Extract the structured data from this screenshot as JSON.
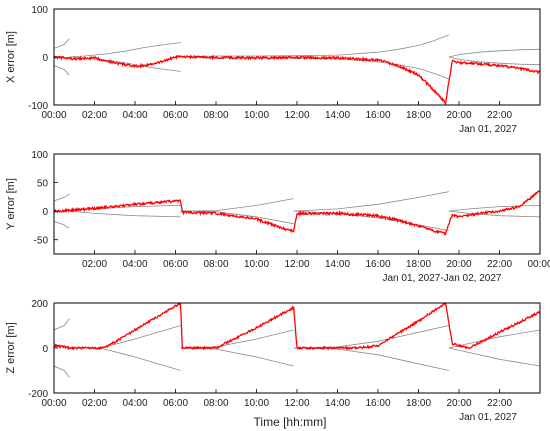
{
  "colors": {
    "error": "#ff0000",
    "bound": "#8a8a8a",
    "frame": "#000000",
    "text": "#222222"
  },
  "figure": {
    "xlabel": "Time [hh:mm]"
  },
  "chart_data": [
    {
      "type": "line",
      "ylabel": "X error [m]",
      "ylim": [
        -100,
        100
      ],
      "yticks": [
        "100",
        "0",
        "-100"
      ],
      "xlim": [
        "00:00",
        "24:00"
      ],
      "xticks": [
        "00:00",
        "02:00",
        "04:00",
        "06:00",
        "08:00",
        "10:00",
        "12:00",
        "14:00",
        "16:00",
        "18:00",
        "20:00",
        "22:00"
      ],
      "date_label": "Jan 01, 2027",
      "grid": false,
      "series": [
        {
          "role": "error",
          "x": [
            "00:00",
            "00:30",
            "01:00",
            "02:00",
            "03:00",
            "04:00",
            "05:00",
            "06:00",
            "07:00",
            "08:00",
            "10:00",
            "12:00",
            "14:00",
            "16:00",
            "17:00",
            "18:00",
            "18:30",
            "19:00",
            "19:20",
            "19:40",
            "20:00",
            "21:00",
            "22:00",
            "23:00",
            "24:00"
          ],
          "y": [
            0,
            -2,
            -4,
            -2,
            -12,
            -20,
            -14,
            0,
            0,
            -1,
            -2,
            -1,
            -2,
            -6,
            -18,
            -38,
            -58,
            -80,
            -96,
            -8,
            -12,
            -14,
            -18,
            -24,
            -32
          ]
        },
        {
          "role": "bound-upper",
          "segments": [
            {
              "x": [
                "00:00",
                "00:30",
                "00:45"
              ],
              "y": [
                18,
                26,
                38
              ]
            },
            {
              "x": [
                "00:45",
                "01:30",
                "02:30",
                "03:30",
                "04:30",
                "05:30",
                "06:15"
              ],
              "y": [
                0,
                2,
                6,
                12,
                20,
                26,
                30
              ]
            },
            {
              "x": [
                "06:15",
                "08:00",
                "10:00",
                "12:00",
                "14:00",
                "16:00",
                "17:00",
                "18:00",
                "18:45",
                "19:30"
              ],
              "y": [
                0,
                2,
                2,
                3,
                4,
                10,
                16,
                24,
                34,
                46
              ]
            },
            {
              "x": [
                "19:30",
                "20:00",
                "21:00",
                "22:00",
                "23:00",
                "24:00"
              ],
              "y": [
                0,
                5,
                10,
                13,
                15,
                16
              ]
            }
          ]
        },
        {
          "role": "bound-lower",
          "segments": [
            {
              "x": [
                "00:00",
                "00:30",
                "00:45"
              ],
              "y": [
                -18,
                -26,
                -38
              ]
            },
            {
              "x": [
                "00:45",
                "01:30",
                "02:30",
                "03:30",
                "04:30",
                "05:30",
                "06:15"
              ],
              "y": [
                0,
                -2,
                -6,
                -12,
                -20,
                -26,
                -30
              ]
            },
            {
              "x": [
                "06:15",
                "08:00",
                "10:00",
                "12:00",
                "14:00",
                "16:00",
                "17:00",
                "18:00",
                "18:45",
                "19:30"
              ],
              "y": [
                0,
                -2,
                -2,
                -3,
                -4,
                -10,
                -16,
                -24,
                -34,
                -46
              ]
            },
            {
              "x": [
                "19:30",
                "20:00",
                "21:00",
                "22:00",
                "23:00",
                "24:00"
              ],
              "y": [
                0,
                -5,
                -10,
                -13,
                -15,
                -16
              ]
            }
          ]
        }
      ]
    },
    {
      "type": "line",
      "ylabel": "Y error [m]",
      "ylim": [
        -75,
        100
      ],
      "yticks": [
        "100",
        "50",
        "0",
        "-50"
      ],
      "xlim": [
        "00:00",
        "24:00"
      ],
      "xticks": [
        "02:00",
        "04:00",
        "06:00",
        "08:00",
        "10:00",
        "12:00",
        "14:00",
        "16:00",
        "18:00",
        "20:00",
        "22:00",
        "00:00"
      ],
      "date_label": "Jan 01, 2027-Jan 02, 2027",
      "grid": false,
      "series": [
        {
          "role": "error",
          "x": [
            "00:00",
            "01:00",
            "02:00",
            "03:00",
            "04:00",
            "05:00",
            "06:15",
            "06:20",
            "08:00",
            "10:00",
            "11:00",
            "11:50",
            "12:00",
            "14:00",
            "16:00",
            "17:00",
            "18:00",
            "19:20",
            "19:40",
            "20:00",
            "21:00",
            "22:00",
            "23:00",
            "24:00"
          ],
          "y": [
            0,
            2,
            5,
            8,
            12,
            15,
            18,
            -2,
            -4,
            -14,
            -26,
            -36,
            -4,
            -4,
            -8,
            -16,
            -26,
            -40,
            -6,
            -10,
            -4,
            0,
            8,
            36
          ]
        },
        {
          "role": "bound-upper",
          "segments": [
            {
              "x": [
                "00:00",
                "00:30",
                "00:45"
              ],
              "y": [
                18,
                24,
                30
              ]
            },
            {
              "x": [
                "00:45",
                "02:00",
                "04:00",
                "06:15"
              ],
              "y": [
                0,
                4,
                8,
                10
              ]
            },
            {
              "x": [
                "06:15",
                "08:00",
                "10:00",
                "11:50"
              ],
              "y": [
                0,
                1,
                10,
                22
              ]
            },
            {
              "x": [
                "11:50",
                "14:00",
                "16:00",
                "18:00",
                "19:30"
              ],
              "y": [
                0,
                4,
                12,
                24,
                34
              ]
            },
            {
              "x": [
                "19:30",
                "20:30",
                "22:00",
                "24:00"
              ],
              "y": [
                0,
                4,
                8,
                10
              ]
            }
          ]
        },
        {
          "role": "bound-lower",
          "segments": [
            {
              "x": [
                "00:00",
                "00:30",
                "00:45"
              ],
              "y": [
                -18,
                -24,
                -30
              ]
            },
            {
              "x": [
                "00:45",
                "02:00",
                "04:00",
                "06:15"
              ],
              "y": [
                0,
                -4,
                -8,
                -10
              ]
            },
            {
              "x": [
                "06:15",
                "08:00",
                "10:00",
                "11:50"
              ],
              "y": [
                0,
                -1,
                -10,
                -22
              ]
            },
            {
              "x": [
                "11:50",
                "14:00",
                "16:00",
                "18:00",
                "19:30"
              ],
              "y": [
                0,
                -4,
                -12,
                -24,
                -34
              ]
            },
            {
              "x": [
                "19:30",
                "20:30",
                "22:00",
                "24:00"
              ],
              "y": [
                0,
                -4,
                -8,
                -10
              ]
            }
          ]
        }
      ]
    },
    {
      "type": "line",
      "ylabel": "Z error [m]",
      "ylim": [
        -200,
        200
      ],
      "yticks": [
        "200",
        "0",
        "-200"
      ],
      "xlim": [
        "00:00",
        "24:00"
      ],
      "xticks": [
        "00:00",
        "02:00",
        "04:00",
        "06:00",
        "08:00",
        "10:00",
        "12:00",
        "14:00",
        "16:00",
        "18:00",
        "20:00",
        "22:00"
      ],
      "date_label": "Jan 01, 2027",
      "grid": false,
      "series": [
        {
          "role": "error",
          "x": [
            "00:00",
            "00:30",
            "00:45",
            "01:30",
            "02:30",
            "04:00",
            "06:15",
            "06:20",
            "07:00",
            "07:30",
            "08:00",
            "10:00",
            "11:50",
            "12:00",
            "13:00",
            "14:00",
            "15:00",
            "16:00",
            "18:00",
            "19:20",
            "19:40",
            "20:00",
            "20:30",
            "22:00",
            "24:00"
          ],
          "y": [
            10,
            5,
            0,
            0,
            0,
            80,
            200,
            0,
            0,
            0,
            0,
            90,
            180,
            0,
            0,
            0,
            0,
            10,
            120,
            200,
            20,
            10,
            0,
            70,
            160
          ]
        },
        {
          "role": "bound-upper",
          "segments": [
            {
              "x": [
                "00:00",
                "00:30",
                "00:45"
              ],
              "y": [
                80,
                100,
                130
              ]
            },
            {
              "x": [
                "00:45",
                "02:00",
                "02:30",
                "04:00",
                "06:15"
              ],
              "y": [
                0,
                0,
                5,
                40,
                100
              ]
            },
            {
              "x": [
                "06:15",
                "08:00",
                "10:00",
                "11:50"
              ],
              "y": [
                0,
                5,
                40,
                80
              ]
            },
            {
              "x": [
                "11:50",
                "14:00",
                "16:00",
                "18:00",
                "19:30"
              ],
              "y": [
                0,
                5,
                30,
                70,
                100
              ]
            },
            {
              "x": [
                "19:30",
                "20:30",
                "22:00",
                "24:00"
              ],
              "y": [
                0,
                20,
                50,
                80
              ]
            }
          ]
        },
        {
          "role": "bound-lower",
          "segments": [
            {
              "x": [
                "00:00",
                "00:30",
                "00:45"
              ],
              "y": [
                -80,
                -100,
                -130
              ]
            },
            {
              "x": [
                "00:45",
                "02:00",
                "02:30",
                "04:00",
                "06:15"
              ],
              "y": [
                0,
                0,
                -5,
                -40,
                -100
              ]
            },
            {
              "x": [
                "06:15",
                "08:00",
                "10:00",
                "11:50"
              ],
              "y": [
                0,
                -5,
                -40,
                -80
              ]
            },
            {
              "x": [
                "11:50",
                "14:00",
                "16:00",
                "18:00",
                "19:30"
              ],
              "y": [
                0,
                -5,
                -30,
                -70,
                -100
              ]
            },
            {
              "x": [
                "19:30",
                "20:30",
                "22:00",
                "24:00"
              ],
              "y": [
                0,
                -20,
                -50,
                -80
              ]
            }
          ]
        }
      ]
    }
  ]
}
